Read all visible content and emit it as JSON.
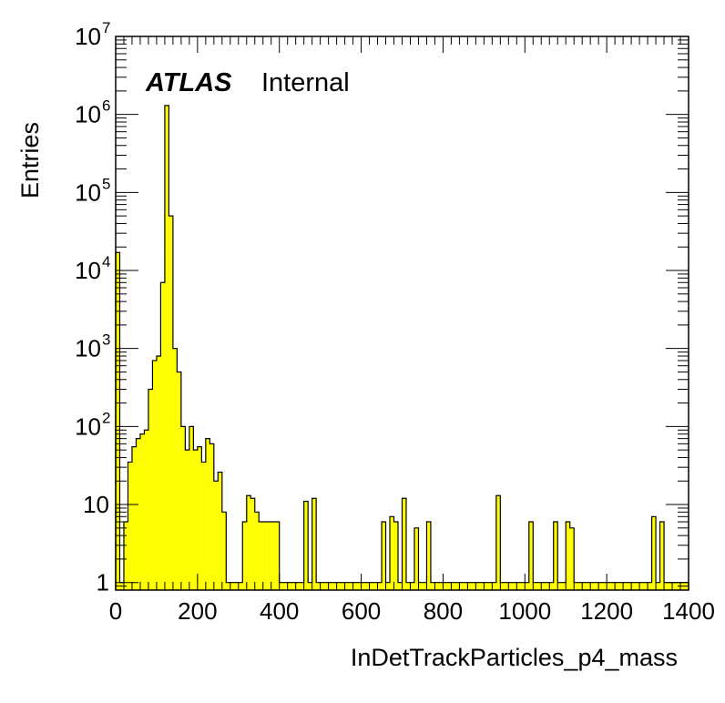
{
  "chart_data": {
    "type": "histogram",
    "title": "",
    "label_brand": "ATLAS",
    "label_status": "Internal",
    "xlabel": "InDetTrackParticles_p4_mass",
    "ylabel": "Entries",
    "xlim": [
      0,
      1400
    ],
    "ylim": [
      0.8,
      10000000
    ],
    "yscale": "log",
    "bin_width": 10,
    "fill_color": "#ffff00",
    "line_color": "#000000",
    "x_tick_labels": [
      "0",
      "200",
      "400",
      "600",
      "800",
      "1000",
      "1200",
      "1400"
    ],
    "y_tick_labels": [
      {
        "base": "1",
        "exp": ""
      },
      {
        "base": "10",
        "exp": ""
      },
      {
        "base": "10",
        "exp": "2"
      },
      {
        "base": "10",
        "exp": "3"
      },
      {
        "base": "10",
        "exp": "4"
      },
      {
        "base": "10",
        "exp": "5"
      },
      {
        "base": "10",
        "exp": "6"
      },
      {
        "base": "10",
        "exp": "7"
      }
    ],
    "bins": [
      [
        0,
        17000
      ],
      [
        10,
        1
      ],
      [
        20,
        6
      ],
      [
        30,
        35
      ],
      [
        40,
        55
      ],
      [
        50,
        70
      ],
      [
        60,
        80
      ],
      [
        70,
        90
      ],
      [
        80,
        300
      ],
      [
        90,
        700
      ],
      [
        100,
        800
      ],
      [
        110,
        7000
      ],
      [
        120,
        1300000
      ],
      [
        130,
        50000
      ],
      [
        140,
        1000
      ],
      [
        150,
        500
      ],
      [
        160,
        100
      ],
      [
        170,
        50
      ],
      [
        180,
        100
      ],
      [
        190,
        50
      ],
      [
        200,
        55
      ],
      [
        210,
        35
      ],
      [
        220,
        70
      ],
      [
        230,
        60
      ],
      [
        240,
        20
      ],
      [
        250,
        26
      ],
      [
        260,
        8
      ],
      [
        270,
        1
      ],
      [
        280,
        1
      ],
      [
        290,
        1
      ],
      [
        300,
        1
      ],
      [
        310,
        6
      ],
      [
        320,
        13
      ],
      [
        330,
        12
      ],
      [
        340,
        8
      ],
      [
        350,
        6
      ],
      [
        360,
        6
      ],
      [
        370,
        6
      ],
      [
        380,
        6
      ],
      [
        390,
        6
      ],
      [
        400,
        1
      ],
      [
        410,
        1
      ],
      [
        420,
        1
      ],
      [
        430,
        1
      ],
      [
        440,
        1
      ],
      [
        450,
        1
      ],
      [
        460,
        11
      ],
      [
        470,
        1
      ],
      [
        480,
        12
      ],
      [
        490,
        1
      ],
      [
        500,
        1
      ],
      [
        510,
        1
      ],
      [
        520,
        1
      ],
      [
        530,
        1
      ],
      [
        540,
        1
      ],
      [
        550,
        1
      ],
      [
        560,
        1
      ],
      [
        570,
        1
      ],
      [
        580,
        1
      ],
      [
        590,
        1
      ],
      [
        600,
        1
      ],
      [
        610,
        1
      ],
      [
        620,
        1
      ],
      [
        630,
        1
      ],
      [
        640,
        1
      ],
      [
        650,
        6
      ],
      [
        660,
        1
      ],
      [
        670,
        7
      ],
      [
        680,
        6
      ],
      [
        690,
        1
      ],
      [
        700,
        12
      ],
      [
        710,
        1
      ],
      [
        720,
        1
      ],
      [
        730,
        5
      ],
      [
        740,
        1
      ],
      [
        750,
        1
      ],
      [
        760,
        6
      ],
      [
        770,
        1
      ],
      [
        780,
        1
      ],
      [
        790,
        1
      ],
      [
        800,
        1
      ],
      [
        810,
        1
      ],
      [
        820,
        1
      ],
      [
        830,
        1
      ],
      [
        840,
        1
      ],
      [
        850,
        1
      ],
      [
        860,
        1
      ],
      [
        870,
        1
      ],
      [
        880,
        1
      ],
      [
        890,
        1
      ],
      [
        900,
        1
      ],
      [
        910,
        1
      ],
      [
        920,
        1
      ],
      [
        930,
        13
      ],
      [
        940,
        1
      ],
      [
        950,
        1
      ],
      [
        960,
        1
      ],
      [
        970,
        1
      ],
      [
        980,
        1
      ],
      [
        990,
        1
      ],
      [
        1000,
        1
      ],
      [
        1010,
        6
      ],
      [
        1020,
        1
      ],
      [
        1030,
        1
      ],
      [
        1040,
        1
      ],
      [
        1050,
        1
      ],
      [
        1060,
        1
      ],
      [
        1070,
        6
      ],
      [
        1080,
        1
      ],
      [
        1090,
        1
      ],
      [
        1100,
        6
      ],
      [
        1110,
        5
      ],
      [
        1120,
        1
      ],
      [
        1130,
        1
      ],
      [
        1140,
        1
      ],
      [
        1150,
        1
      ],
      [
        1160,
        1
      ],
      [
        1170,
        1
      ],
      [
        1180,
        1
      ],
      [
        1190,
        1
      ],
      [
        1200,
        1
      ],
      [
        1210,
        1
      ],
      [
        1220,
        1
      ],
      [
        1230,
        1
      ],
      [
        1240,
        1
      ],
      [
        1250,
        1
      ],
      [
        1260,
        1
      ],
      [
        1270,
        1
      ],
      [
        1280,
        1
      ],
      [
        1290,
        1
      ],
      [
        1300,
        1
      ],
      [
        1310,
        7
      ],
      [
        1320,
        1
      ],
      [
        1330,
        6
      ],
      [
        1340,
        1
      ],
      [
        1350,
        1
      ],
      [
        1360,
        1
      ],
      [
        1370,
        1
      ],
      [
        1380,
        1
      ],
      [
        1390,
        1
      ]
    ]
  }
}
